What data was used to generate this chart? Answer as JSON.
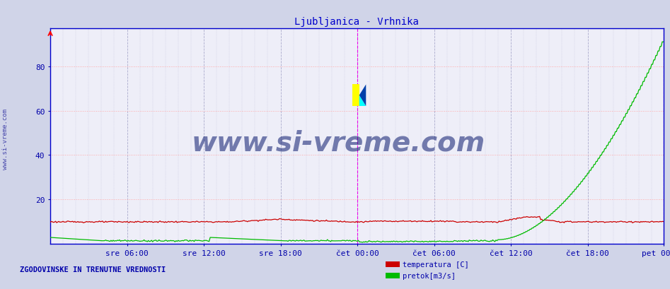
{
  "title": "Ljubljanica - Vrhnika",
  "title_color": "#0000cc",
  "bg_color": "#d0d4e8",
  "plot_bg_color": "#eeeef8",
  "grid_dashed_color": "#aaaacc",
  "grid_dotted_color": "#ffaaaa",
  "xlabel_labels": [
    "sre 06:00",
    "sre 12:00",
    "sre 18:00",
    "čet 00:00",
    "čet 06:00",
    "čet 12:00",
    "čet 18:00",
    "pet 00:00"
  ],
  "tick_label_color": "#0000aa",
  "yticks": [
    20,
    40,
    60,
    80
  ],
  "ylim": [
    0,
    97
  ],
  "n_points": 576,
  "temp_color": "#cc0000",
  "flow_color": "#00bb00",
  "watermark_text": "www.si-vreme.com",
  "watermark_color": "#0a1a6e",
  "watermark_alpha": 0.55,
  "watermark_fontsize": 28,
  "footer_text": "ZGODOVINSKE IN TRENUTNE VREDNOSTI",
  "footer_color": "#0000aa",
  "legend_labels": [
    "temperatura [C]",
    "pretok[m3/s]"
  ],
  "legend_colors": [
    "#cc0000",
    "#00bb00"
  ],
  "vline_color": "#ee00ee",
  "border_color": "#0000cc",
  "sidebar_text": "www.si-vreme.com",
  "sidebar_color": "#4444aa"
}
